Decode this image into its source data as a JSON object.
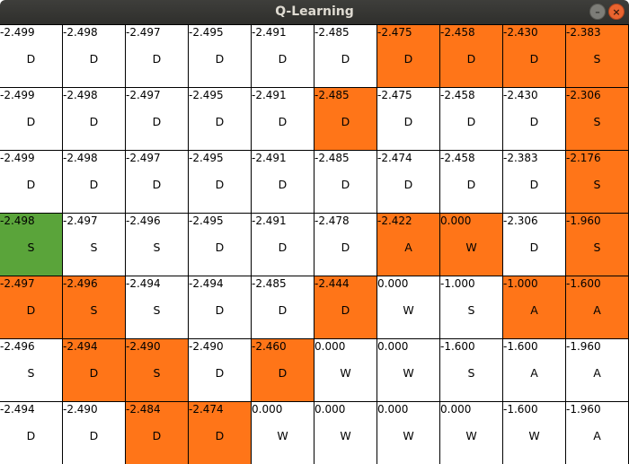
{
  "window": {
    "title": "Q-Learning",
    "minimize_glyph": "–",
    "close_glyph": "×"
  },
  "colors": {
    "path": "#ff7518",
    "start": "#5aa43a",
    "empty": "#ffffff"
  },
  "grid": {
    "rows": [
      [
        {
          "value": "-2.499",
          "action": "D",
          "state": "empty"
        },
        {
          "value": "-2.498",
          "action": "D",
          "state": "empty"
        },
        {
          "value": "-2.497",
          "action": "D",
          "state": "empty"
        },
        {
          "value": "-2.495",
          "action": "D",
          "state": "empty"
        },
        {
          "value": "-2.491",
          "action": "D",
          "state": "empty"
        },
        {
          "value": "-2.485",
          "action": "D",
          "state": "empty"
        },
        {
          "value": "-2.475",
          "action": "D",
          "state": "path"
        },
        {
          "value": "-2.458",
          "action": "D",
          "state": "path"
        },
        {
          "value": "-2.430",
          "action": "D",
          "state": "path"
        },
        {
          "value": "-2.383",
          "action": "S",
          "state": "path"
        }
      ],
      [
        {
          "value": "-2.499",
          "action": "D",
          "state": "empty"
        },
        {
          "value": "-2.498",
          "action": "D",
          "state": "empty"
        },
        {
          "value": "-2.497",
          "action": "D",
          "state": "empty"
        },
        {
          "value": "-2.495",
          "action": "D",
          "state": "empty"
        },
        {
          "value": "-2.491",
          "action": "D",
          "state": "empty"
        },
        {
          "value": "-2.485",
          "action": "D",
          "state": "path"
        },
        {
          "value": "-2.475",
          "action": "D",
          "state": "empty"
        },
        {
          "value": "-2.458",
          "action": "D",
          "state": "empty"
        },
        {
          "value": "-2.430",
          "action": "D",
          "state": "empty"
        },
        {
          "value": "-2.306",
          "action": "S",
          "state": "path"
        }
      ],
      [
        {
          "value": "-2.499",
          "action": "D",
          "state": "empty"
        },
        {
          "value": "-2.498",
          "action": "D",
          "state": "empty"
        },
        {
          "value": "-2.497",
          "action": "D",
          "state": "empty"
        },
        {
          "value": "-2.495",
          "action": "D",
          "state": "empty"
        },
        {
          "value": "-2.491",
          "action": "D",
          "state": "empty"
        },
        {
          "value": "-2.485",
          "action": "D",
          "state": "empty"
        },
        {
          "value": "-2.474",
          "action": "D",
          "state": "empty"
        },
        {
          "value": "-2.458",
          "action": "D",
          "state": "empty"
        },
        {
          "value": "-2.383",
          "action": "D",
          "state": "empty"
        },
        {
          "value": "-2.176",
          "action": "S",
          "state": "path"
        }
      ],
      [
        {
          "value": "-2.498",
          "action": "S",
          "state": "start"
        },
        {
          "value": "-2.497",
          "action": "S",
          "state": "empty"
        },
        {
          "value": "-2.496",
          "action": "S",
          "state": "empty"
        },
        {
          "value": "-2.495",
          "action": "D",
          "state": "empty"
        },
        {
          "value": "-2.491",
          "action": "D",
          "state": "empty"
        },
        {
          "value": "-2.478",
          "action": "D",
          "state": "empty"
        },
        {
          "value": "-2.422",
          "action": "A",
          "state": "path"
        },
        {
          "value": "0.000",
          "action": "W",
          "state": "path"
        },
        {
          "value": "-2.306",
          "action": "D",
          "state": "empty"
        },
        {
          "value": "-1.960",
          "action": "S",
          "state": "path"
        }
      ],
      [
        {
          "value": "-2.497",
          "action": "D",
          "state": "path"
        },
        {
          "value": "-2.496",
          "action": "S",
          "state": "path"
        },
        {
          "value": "-2.494",
          "action": "S",
          "state": "empty"
        },
        {
          "value": "-2.494",
          "action": "D",
          "state": "empty"
        },
        {
          "value": "-2.485",
          "action": "D",
          "state": "empty"
        },
        {
          "value": "-2.444",
          "action": "D",
          "state": "path"
        },
        {
          "value": "0.000",
          "action": "W",
          "state": "empty"
        },
        {
          "value": "-1.000",
          "action": "S",
          "state": "empty"
        },
        {
          "value": "-1.000",
          "action": "A",
          "state": "path"
        },
        {
          "value": "-1.600",
          "action": "A",
          "state": "path"
        }
      ],
      [
        {
          "value": "-2.496",
          "action": "S",
          "state": "empty"
        },
        {
          "value": "-2.494",
          "action": "D",
          "state": "path"
        },
        {
          "value": "-2.490",
          "action": "S",
          "state": "path"
        },
        {
          "value": "-2.490",
          "action": "D",
          "state": "empty"
        },
        {
          "value": "-2.460",
          "action": "D",
          "state": "path"
        },
        {
          "value": "0.000",
          "action": "W",
          "state": "empty"
        },
        {
          "value": "0.000",
          "action": "W",
          "state": "empty"
        },
        {
          "value": "-1.600",
          "action": "S",
          "state": "empty"
        },
        {
          "value": "-1.600",
          "action": "A",
          "state": "empty"
        },
        {
          "value": "-1.960",
          "action": "A",
          "state": "empty"
        }
      ],
      [
        {
          "value": "-2.494",
          "action": "D",
          "state": "empty"
        },
        {
          "value": "-2.490",
          "action": "D",
          "state": "empty"
        },
        {
          "value": "-2.484",
          "action": "D",
          "state": "path"
        },
        {
          "value": "-2.474",
          "action": "D",
          "state": "path"
        },
        {
          "value": "0.000",
          "action": "W",
          "state": "empty"
        },
        {
          "value": "0.000",
          "action": "W",
          "state": "empty"
        },
        {
          "value": "0.000",
          "action": "W",
          "state": "empty"
        },
        {
          "value": "0.000",
          "action": "W",
          "state": "empty"
        },
        {
          "value": "-1.600",
          "action": "W",
          "state": "empty"
        },
        {
          "value": "-1.960",
          "action": "A",
          "state": "empty"
        }
      ]
    ]
  }
}
